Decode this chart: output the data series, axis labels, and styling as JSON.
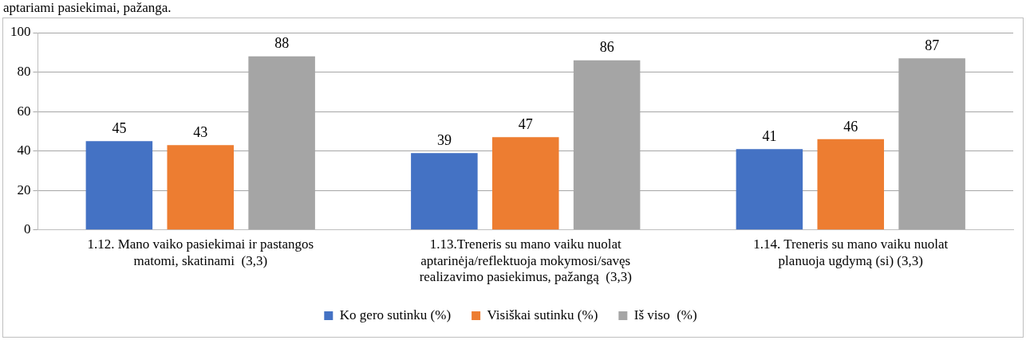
{
  "chart_data": {
    "type": "bar",
    "annotations": [
      "aptariami pasiekimai, pažanga."
    ],
    "categories": [
      "1.12. Mano vaiko pasiekimai ir pastangos matomi, skatinami  (3,3)",
      "1.13.Treneris su mano vaiku nuolat aptarinėja/reflektuoja mokymosi/savęs realizavimo pasiekimus, pažangą  (3,3)",
      "1.14. Treneris su mano vaiku nuolat planuoja ugdymą (si) (3,3)"
    ],
    "series": [
      {
        "name": "Ko gero sutinku (%)",
        "color": "#4472c4",
        "values": [
          45,
          39,
          41
        ]
      },
      {
        "name": "Visiškai sutinku (%)",
        "color": "#ed7d31",
        "values": [
          43,
          47,
          46
        ]
      },
      {
        "name": "Iš viso  (%)",
        "color": "#a5a5a5",
        "values": [
          88,
          86,
          87
        ]
      }
    ],
    "ylim": [
      0,
      100
    ],
    "yticks": [
      0,
      20,
      40,
      60,
      80,
      100
    ],
    "grid": "y",
    "legend": "bottom",
    "data_labels": true
  }
}
